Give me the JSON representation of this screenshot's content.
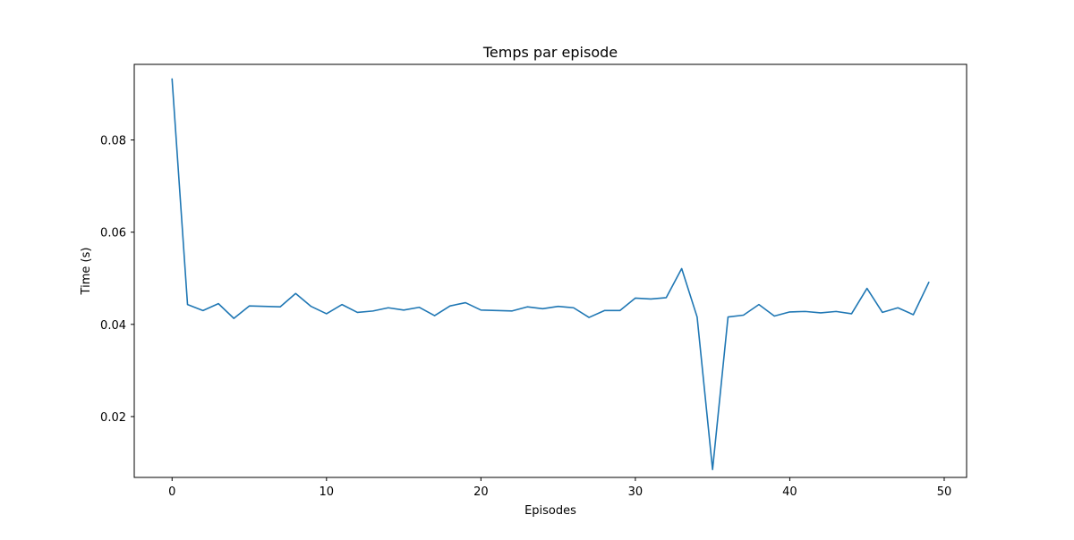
{
  "chart_data": {
    "type": "line",
    "title": "Temps par episode",
    "xlabel": "Episodes",
    "ylabel": "Time (s)",
    "xlim": [
      -2.45,
      51.45
    ],
    "ylim": [
      0.0068,
      0.0964
    ],
    "x_ticks": [
      0,
      10,
      20,
      30,
      40,
      50
    ],
    "y_ticks": [
      0.02,
      0.04,
      0.06,
      0.08
    ],
    "grid": false,
    "legend": "none",
    "series": [
      {
        "color": "#1f77b4",
        "x": [
          0,
          1,
          2,
          3,
          4,
          5,
          6,
          7,
          8,
          9,
          10,
          11,
          12,
          13,
          14,
          15,
          16,
          17,
          18,
          19,
          20,
          21,
          22,
          23,
          24,
          25,
          26,
          27,
          28,
          29,
          30,
          31,
          32,
          33,
          34,
          35,
          36,
          37,
          38,
          39,
          40,
          41,
          42,
          43,
          44,
          45,
          46,
          47,
          48,
          49
        ],
        "values": [
          0.0932,
          0.0443,
          0.043,
          0.0445,
          0.0413,
          0.044,
          0.0439,
          0.0438,
          0.0467,
          0.0439,
          0.0423,
          0.0443,
          0.0426,
          0.0429,
          0.0436,
          0.0431,
          0.0437,
          0.0419,
          0.044,
          0.0447,
          0.0431,
          0.043,
          0.0429,
          0.0438,
          0.0434,
          0.0439,
          0.0436,
          0.0415,
          0.043,
          0.043,
          0.0457,
          0.0455,
          0.0458,
          0.0521,
          0.0416,
          0.0085,
          0.0416,
          0.042,
          0.0443,
          0.0418,
          0.0427,
          0.0428,
          0.0425,
          0.0428,
          0.0423,
          0.0478,
          0.0426,
          0.0436,
          0.0421,
          0.0491
        ]
      }
    ]
  }
}
